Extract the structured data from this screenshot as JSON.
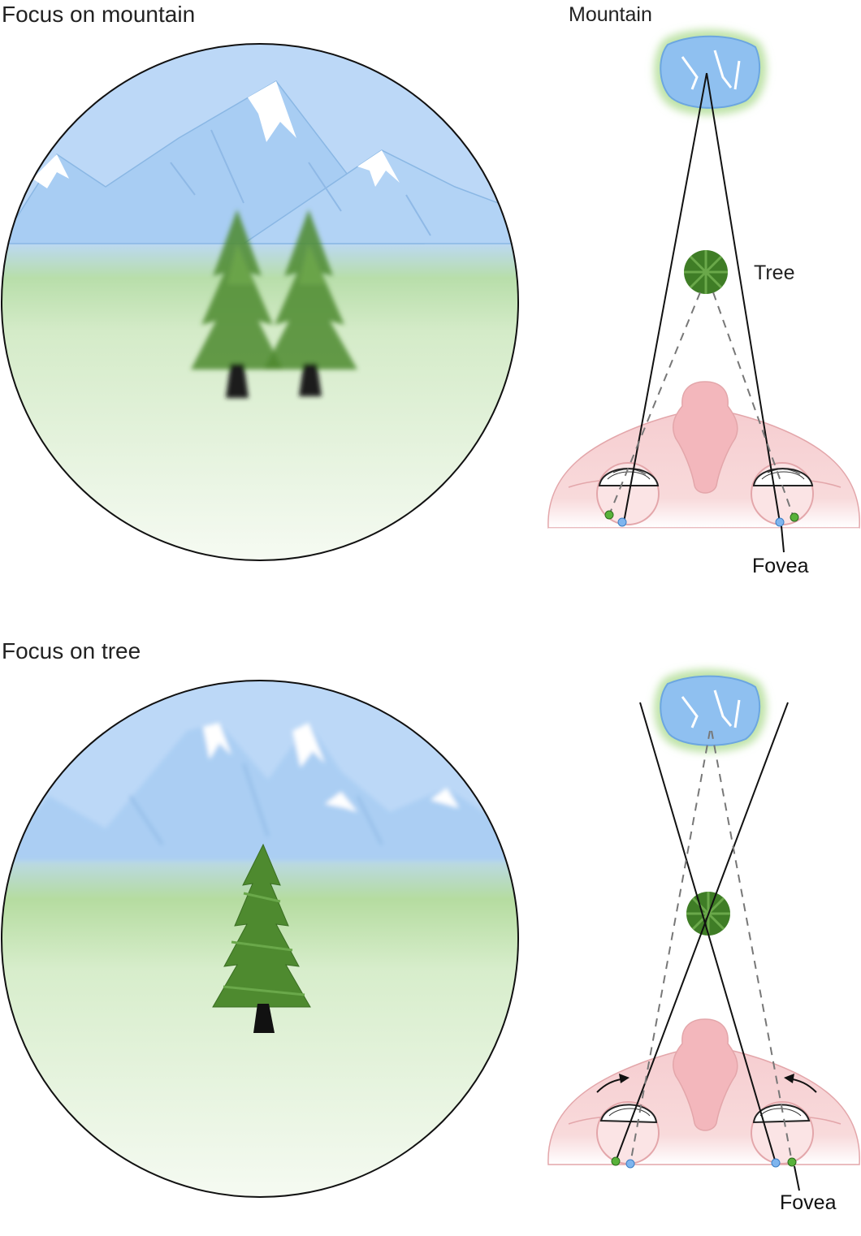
{
  "panels": [
    {
      "title": "Focus on mountain",
      "labels": {
        "mountain": "Mountain",
        "tree": "Tree",
        "fovea": "Fovea"
      }
    },
    {
      "title": "Focus on tree",
      "labels": {
        "fovea": "Fovea"
      }
    }
  ],
  "colors": {
    "sky": "#bcd8f7",
    "grass": "#b5dca0",
    "tree": "#4d8a2e",
    "trunk": "#1a1a1a",
    "face": "#f6cdd0",
    "retina_green": "#58b23a",
    "fovea_blue": "#7fb5ee"
  }
}
